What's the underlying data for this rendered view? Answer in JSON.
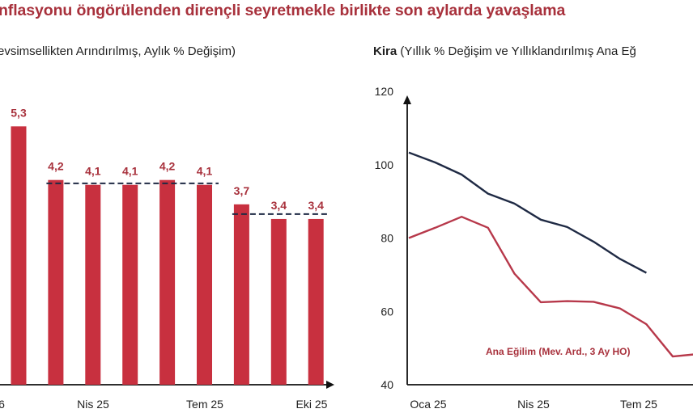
{
  "header": {
    "title": "nflasyonu öngörülenden dirençli seyretmekle birlikte son aylarda yavaşlama",
    "left_subtitle": "evsimsellikten Arındırılmış, Aylık % Değişim)",
    "right_subtitle_bold": "Kira",
    "right_subtitle_rest": " (Yıllık % Değişim ve Yıllıklandırılmış Ana Eğ"
  },
  "colors": {
    "bar": "#c8303f",
    "line_dark": "#1f2a44",
    "line_red": "#b7384a",
    "dashed": "#1f2a44",
    "title": "#a8313c"
  },
  "chart_data": [
    {
      "type": "bar",
      "title": "",
      "categories": [
        "",
        "",
        "",
        "",
        "",
        "",
        "",
        "",
        ""
      ],
      "values": [
        5.3,
        4.2,
        4.1,
        4.1,
        4.2,
        4.1,
        3.7,
        3.4,
        3.4
      ],
      "data_labels": [
        "5,3",
        "4,2",
        "4,1",
        "4,1",
        "4,2",
        "4,1",
        "3,7",
        "3,4",
        "3,4"
      ],
      "x_tick_labels": [
        "6",
        "Nis 25",
        "Tem 25",
        "Eki 25"
      ],
      "reference_lines": [
        {
          "from_index": 1,
          "to_index": 5,
          "value": 4.13
        },
        {
          "from_index": 6,
          "to_index": 8,
          "value": 3.5
        }
      ],
      "ylim": [
        0,
        6.4
      ]
    },
    {
      "type": "line",
      "x_tick_labels": [
        "Oca 25",
        "Nis 25",
        "Tem 25"
      ],
      "yticks": [
        "40",
        "60",
        "80",
        "100",
        "120"
      ],
      "ylim": [
        40,
        120
      ],
      "series": [
        {
          "name": "",
          "color": "#1f2a44",
          "values": [
            103.3,
            100.6,
            97.3,
            92.1,
            89.4,
            85.0,
            83.0,
            79.0,
            74.3,
            70.5
          ]
        },
        {
          "name": "Ana Eğilim (Mev. Ard., 3 Ay HO)",
          "color": "#b7384a",
          "values": [
            80.0,
            82.8,
            85.8,
            82.8,
            70.3,
            62.5,
            62.8,
            62.6,
            60.8,
            56.5,
            47.7,
            48.4
          ]
        }
      ],
      "annotation": "Ana Eğilim (Mev. Ard., 3 Ay HO)"
    }
  ]
}
